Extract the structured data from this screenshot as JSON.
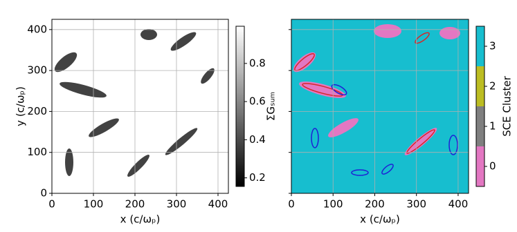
{
  "chart_data": [
    {
      "type": "heatmap",
      "xlabel": "x (c/ωₚ)",
      "ylabel": "y (c/ωₚ)",
      "xlim": [
        0,
        425
      ],
      "ylim": [
        0,
        425
      ],
      "xticks": [
        0,
        100,
        200,
        300,
        400
      ],
      "yticks": [
        0,
        100,
        200,
        300,
        400
      ],
      "grid": true,
      "colorbar": {
        "label": "ΣGₛᵤₘ",
        "lim": [
          0.155,
          0.995
        ],
        "ticks": [
          0.2,
          0.4,
          0.6,
          0.8
        ],
        "colormap": "gray"
      }
    },
    {
      "type": "heatmap",
      "xlabel": "x (c/ωₚ)",
      "xlim": [
        0,
        425
      ],
      "ylim": [
        0,
        425
      ],
      "xticks": [
        0,
        100,
        200,
        300,
        400
      ],
      "yticks": [
        0,
        100,
        200,
        300,
        400
      ],
      "grid": true,
      "colorbar": {
        "label": "SCE Cluster",
        "categories": [
          "0",
          "1",
          "2",
          "3"
        ],
        "colors": [
          "#e377c2",
          "#7f7f7f",
          "#bcbd22",
          "#17becf"
        ]
      }
    }
  ]
}
